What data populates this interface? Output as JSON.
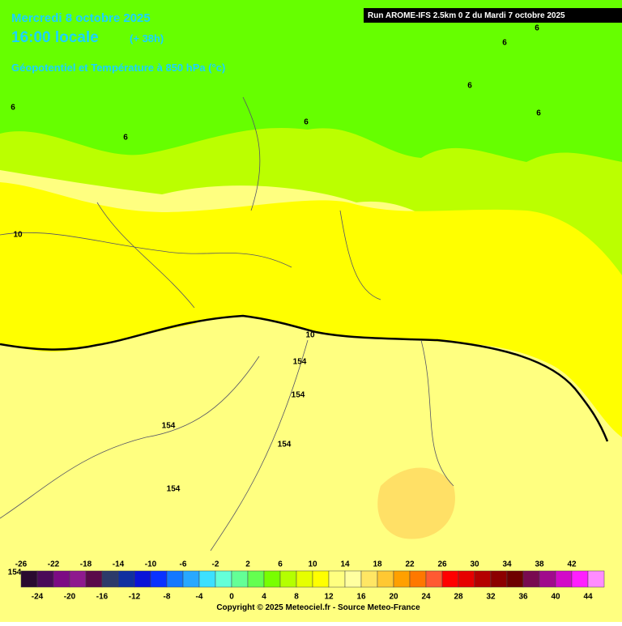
{
  "header": {
    "date": "Mercredi 8 octobre 2025",
    "time": "16:00 locale",
    "lead": "(+ 38h)",
    "subtitle": "Géopotentiel et Température à 850 hPa (°c)",
    "run": "Run AROME-IFS 2.5km 0 Z du Mardi 7 octobre 2025"
  },
  "contour_labels": [
    "6",
    "6",
    "6",
    "6",
    "6",
    "6",
    "6",
    "10",
    "10",
    "154",
    "154",
    "154",
    "154",
    "154",
    "154"
  ],
  "legend": {
    "top_labels": [
      -26,
      -22,
      -18,
      -14,
      -10,
      -6,
      -2,
      2,
      6,
      10,
      14,
      18,
      22,
      26,
      30,
      34,
      38,
      42
    ],
    "bottom_labels": [
      -24,
      -20,
      -16,
      -12,
      -8,
      -4,
      0,
      4,
      8,
      12,
      16,
      20,
      24,
      28,
      32,
      36,
      40,
      44
    ],
    "colors": [
      "#2a0a30",
      "#4a0a58",
      "#7c0a84",
      "#8e1a8e",
      "#5a0a4a",
      "#2c3a6a",
      "#1030a0",
      "#0a14d8",
      "#0a32ff",
      "#1478ff",
      "#28a8ff",
      "#3ce0ff",
      "#64ffd8",
      "#64ff96",
      "#64ff50",
      "#78ff00",
      "#b4ff00",
      "#e6ff00",
      "#ffff00",
      "#ffff80",
      "#ffffa0",
      "#ffe664",
      "#ffc832",
      "#ffa000",
      "#ff7800",
      "#ff5a32",
      "#ff0000",
      "#e60000",
      "#b40000",
      "#8c0000",
      "#6e0000",
      "#780a50",
      "#a00a8c",
      "#d20ac8",
      "#ff1eff",
      "#ff8cff"
    ]
  },
  "copyright": "Copyright © 2025 Meteociel.fr - Source Meteo-France"
}
